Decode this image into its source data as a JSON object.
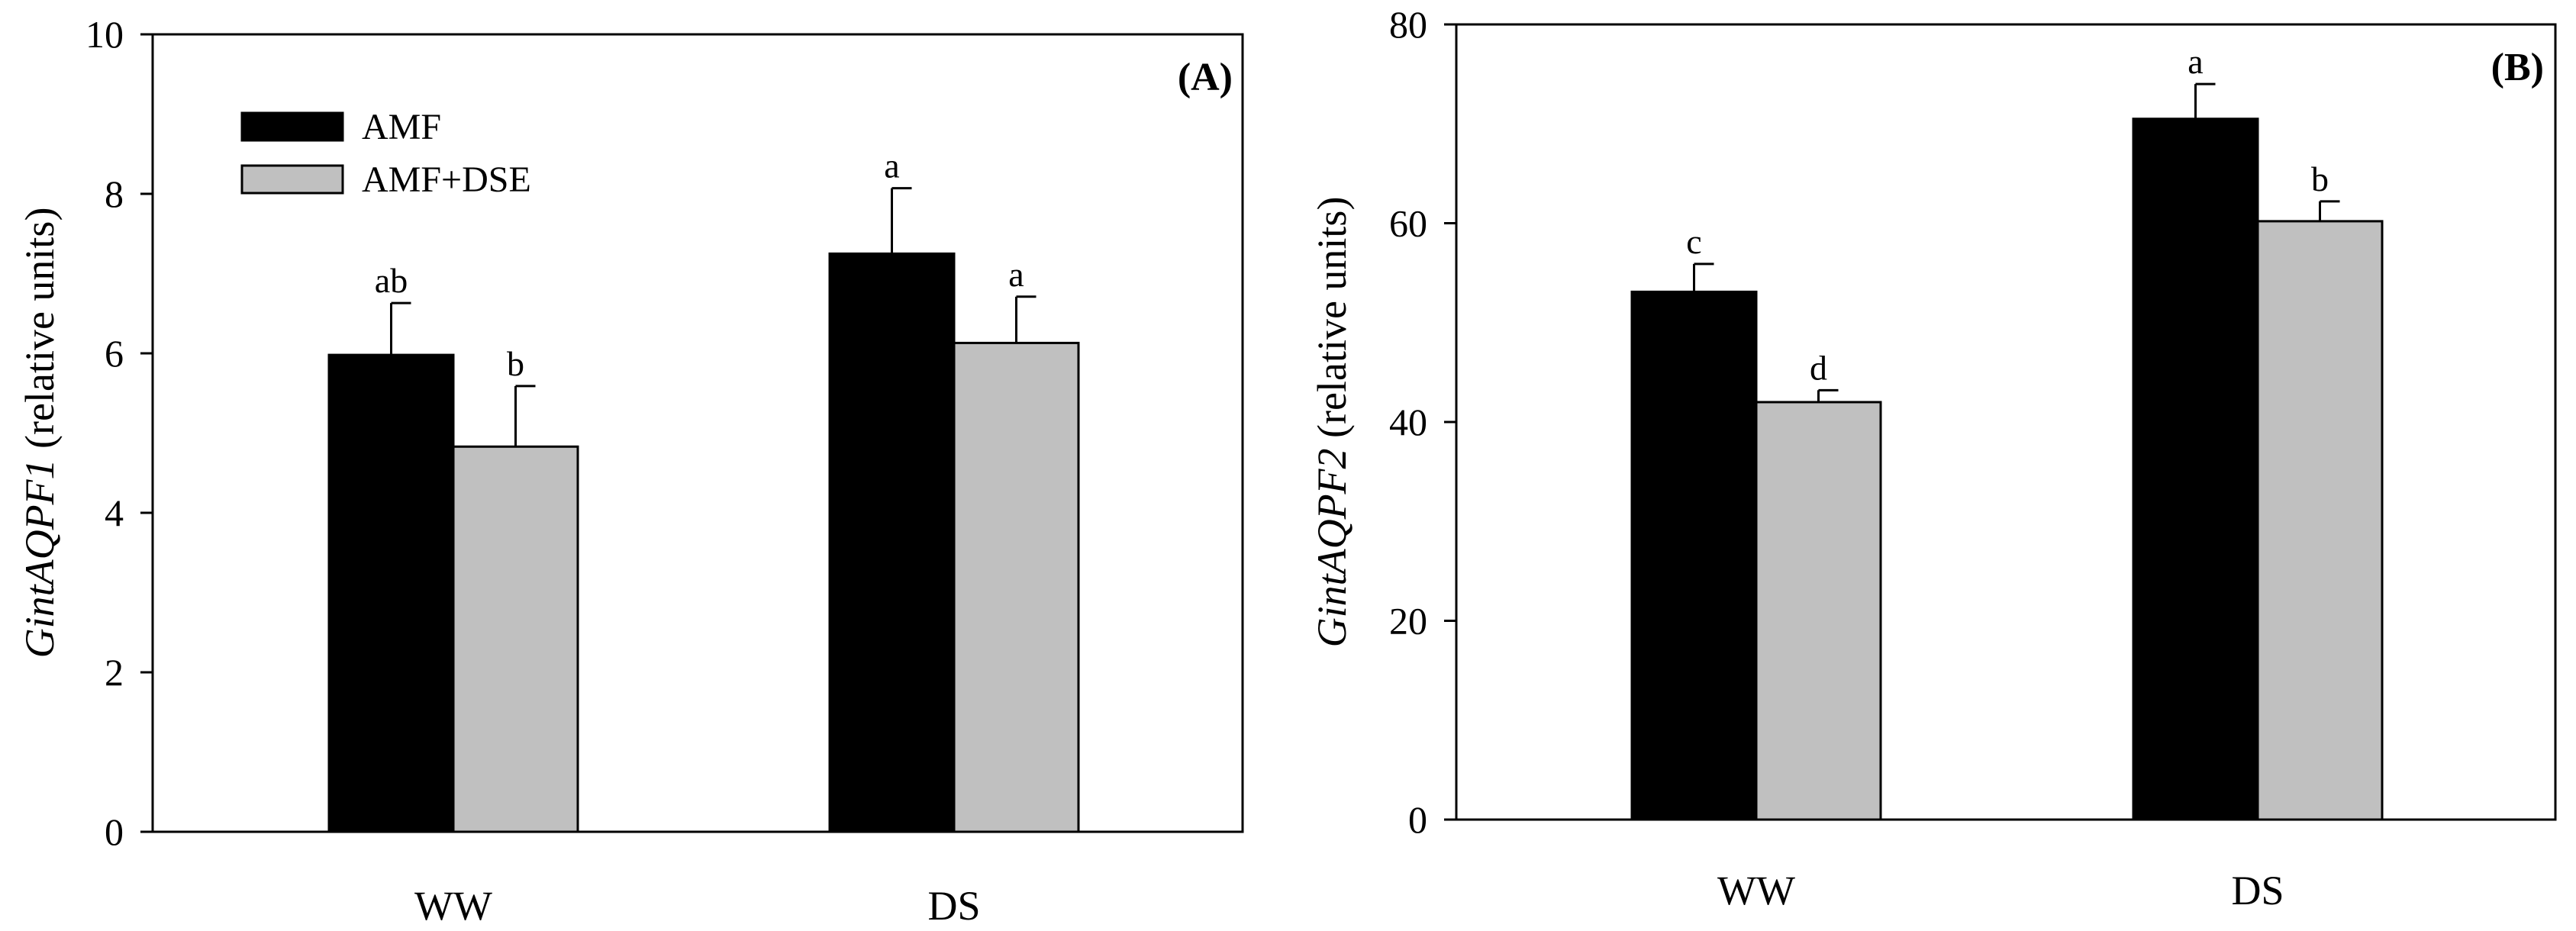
{
  "chart_data": [
    {
      "type": "bar",
      "panel_label": "(A)",
      "ylabel_gene": "GintAQPF1",
      "ylabel_units": " (relative units)",
      "ylim": [
        0,
        10
      ],
      "yticks": [
        "0",
        "2",
        "4",
        "6",
        "8",
        "10"
      ],
      "ytick_values": [
        0,
        2,
        4,
        6,
        8,
        10
      ],
      "categories": [
        "WW",
        "DS"
      ],
      "legend": [
        "AMF",
        "AMF+DSE"
      ],
      "series": [
        {
          "name": "AMF",
          "color": "#000000",
          "values": [
            5.98,
            7.25
          ],
          "errors": [
            0.65,
            0.82
          ],
          "letters": [
            "ab",
            "a"
          ]
        },
        {
          "name": "AMF+DSE",
          "color": "#c0c0c0",
          "values": [
            4.83,
            6.13
          ],
          "errors": [
            0.76,
            0.58
          ],
          "letters": [
            "b",
            "a"
          ]
        }
      ]
    },
    {
      "type": "bar",
      "panel_label": "(B)",
      "ylabel_gene": "GintAQPF2",
      "ylabel_units": " (relative units)",
      "ylim": [
        0,
        80
      ],
      "yticks": [
        "0",
        "20",
        "40",
        "60",
        "80"
      ],
      "ytick_values": [
        0,
        20,
        40,
        60,
        80
      ],
      "categories": [
        "WW",
        "DS"
      ],
      "series": [
        {
          "name": "AMF",
          "color": "#000000",
          "values": [
            53.1,
            70.5
          ],
          "errors": [
            2.8,
            3.5
          ],
          "letters": [
            "c",
            "a"
          ]
        },
        {
          "name": "AMF+DSE",
          "color": "#c0c0c0",
          "values": [
            42.0,
            60.2
          ],
          "errors": [
            1.2,
            2.0
          ],
          "letters": [
            "d",
            "b"
          ]
        }
      ]
    }
  ]
}
